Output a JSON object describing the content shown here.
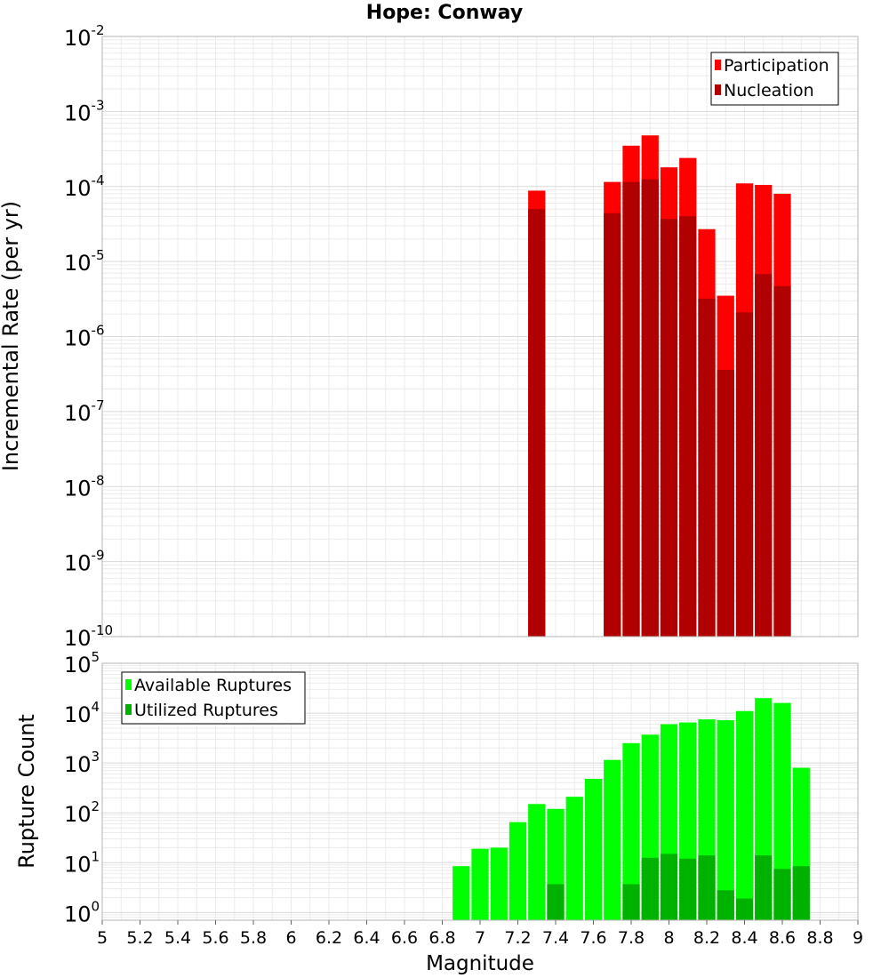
{
  "page": {
    "title": "Hope: Conway"
  },
  "chart_data": [
    {
      "type": "bar",
      "scale": "log",
      "title": "Hope: Conway",
      "xlabel": "",
      "ylabel": "Incremental Rate (per yr)",
      "xlim": [
        5,
        9
      ],
      "ylim": [
        1e-10,
        0.01
      ],
      "grid": true,
      "legend_position": "top-right",
      "y_tick_exponents": [
        "-10",
        "-9",
        "-8",
        "-7",
        "-6",
        "-5",
        "-4",
        "-3",
        "-2"
      ],
      "bin_width": 0.1,
      "x": [
        7.3,
        7.7,
        7.8,
        7.9,
        8.0,
        8.1,
        8.2,
        8.3,
        8.4,
        8.5,
        8.6
      ],
      "series": [
        {
          "name": "Participation",
          "color": "#ff0000",
          "values": [
            8.8e-05,
            0.000115,
            0.00035,
            0.00048,
            0.00018,
            0.00024,
            2.7e-05,
            3.5e-06,
            0.00011,
            0.000105,
            8e-05
          ]
        },
        {
          "name": "Nucleation",
          "color": "#b00000",
          "values": [
            5e-05,
            4.4e-05,
            0.000115,
            0.000125,
            3.7e-05,
            4e-05,
            3.2e-06,
            3.6e-07,
            2.1e-06,
            6.8e-06,
            4.7e-06
          ]
        }
      ]
    },
    {
      "type": "bar",
      "scale": "log",
      "title": "",
      "xlabel": "Magnitude",
      "ylabel": "Rupture Count",
      "xlim": [
        5,
        9
      ],
      "ylim": [
        0.7,
        100000.0
      ],
      "grid": true,
      "legend_position": "top-left",
      "y_tick_exponents": [
        "0",
        "1",
        "2",
        "3",
        "4",
        "5"
      ],
      "x_ticks": [
        "5",
        "5.2",
        "5.4",
        "5.6",
        "5.8",
        "6",
        "6.2",
        "6.4",
        "6.6",
        "6.8",
        "7",
        "7.2",
        "7.4",
        "7.6",
        "7.8",
        "8",
        "8.2",
        "8.4",
        "8.6",
        "8.8",
        "9"
      ],
      "bin_width": 0.1,
      "x": [
        6.9,
        7.0,
        7.1,
        7.2,
        7.3,
        7.4,
        7.5,
        7.6,
        7.7,
        7.8,
        7.9,
        8.0,
        8.1,
        8.2,
        8.3,
        8.4,
        8.5,
        8.6,
        8.7
      ],
      "series": [
        {
          "name": "Available Ruptures",
          "color": "#00ff00",
          "values": [
            8.5,
            19,
            20,
            65,
            150,
            120,
            210,
            480,
            1150,
            2500,
            3700,
            6000,
            6500,
            7500,
            7200,
            11000,
            20000,
            16000,
            800
          ]
        },
        {
          "name": "Utilized Ruptures",
          "color": "#00b200",
          "values": [
            0,
            0,
            0,
            0,
            0,
            3.7,
            0,
            0,
            0,
            3.7,
            12.5,
            15,
            12,
            14,
            2.8,
            1.9,
            14,
            7.5,
            8.5
          ]
        }
      ]
    }
  ]
}
